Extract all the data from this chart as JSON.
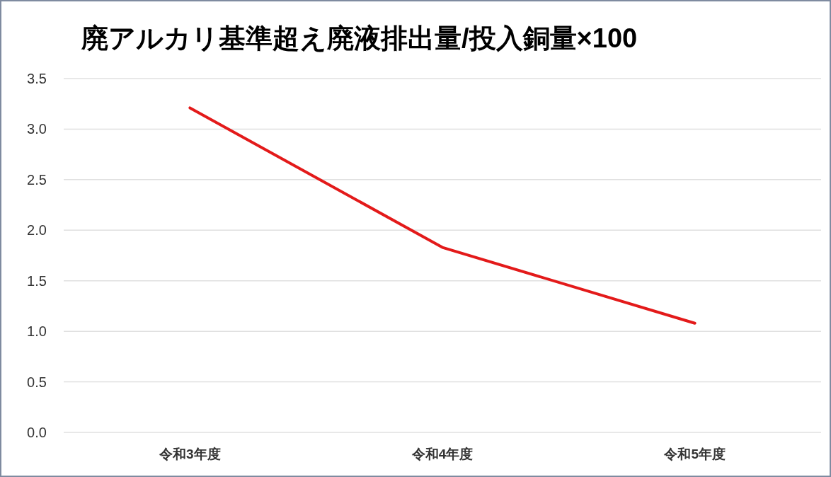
{
  "chart_data": {
    "type": "line",
    "title": "廃アルカリ基準超え廃液排出量/投入銅量×100",
    "categories": [
      "令和3年度",
      "令和4年度",
      "令和5年度"
    ],
    "series": [
      {
        "color": "#e31a1a",
        "values": [
          3.21,
          1.83,
          1.08
        ]
      }
    ],
    "ylim": [
      0,
      3.5
    ],
    "yticks": [
      {
        "value": 0,
        "label": "0.0"
      },
      {
        "value": 0.5,
        "label": "0.5"
      },
      {
        "value": 1,
        "label": "1.0"
      },
      {
        "value": 1.5,
        "label": "1.5"
      },
      {
        "value": 2,
        "label": "2.0"
      },
      {
        "value": 2.5,
        "label": "2.5"
      },
      {
        "value": 3,
        "label": "3.0"
      },
      {
        "value": 3.5,
        "label": "3.5"
      }
    ],
    "grid": "y",
    "marker": "none",
    "line_style": "solid"
  }
}
